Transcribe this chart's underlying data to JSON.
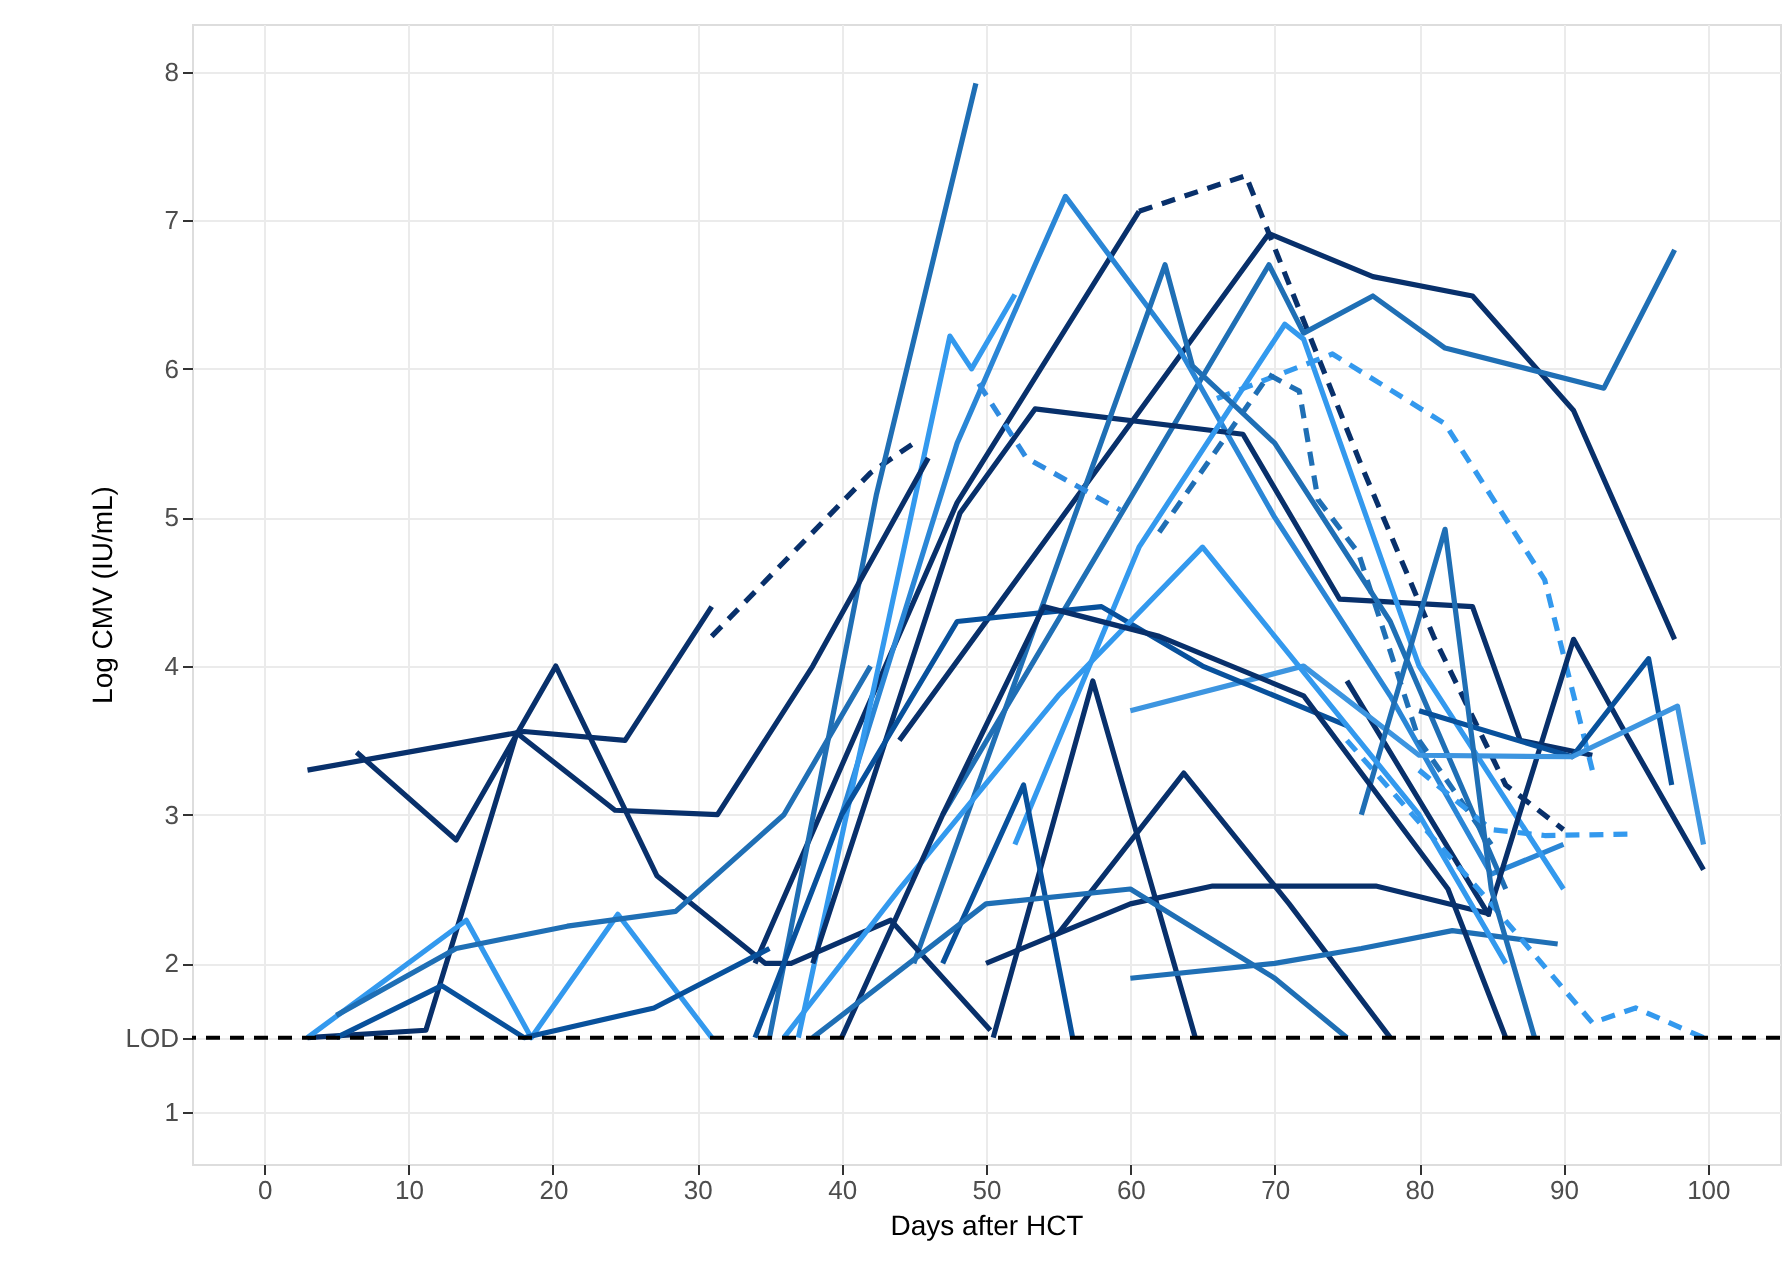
{
  "chart_data": {
    "type": "line",
    "xlabel": "Days after HCT",
    "ylabel": "Log CMV (IU/mL)",
    "xlim": [
      -5,
      105
    ],
    "ylim": [
      0.65,
      8.32
    ],
    "xticks": [
      0,
      10,
      20,
      30,
      40,
      50,
      60,
      70,
      80,
      90,
      100
    ],
    "yticks": [
      1,
      {
        "value": 1.5,
        "label": "LOD"
      },
      2,
      3,
      4,
      5,
      6,
      7,
      8
    ],
    "grid": true,
    "marker": "none",
    "line_style": "solid",
    "ref_lines": [
      {
        "axis": "y",
        "value": 1.5,
        "color": "#000000",
        "line_style": "dashed"
      }
    ],
    "series": [
      {
        "color": "#08306b",
        "x": [
          3,
          18,
          25,
          31
        ],
        "values": [
          3.3,
          3.56,
          3.5,
          4.4
        ]
      },
      {
        "color": "#08306b",
        "line_style": "dashed",
        "x": [
          31,
          42,
          45
        ],
        "values": [
          4.2,
          5.3,
          5.5
        ]
      },
      {
        "color": "#08306b",
        "x": [
          34,
          48,
          60.6
        ],
        "values": [
          2.0,
          5.1,
          7.06
        ]
      },
      {
        "color": "#08306b",
        "line_style": "dashed",
        "x": [
          60.6,
          68,
          76,
          81,
          86,
          90
        ],
        "values": [
          7.06,
          7.3,
          5.35,
          4.2,
          3.2,
          2.9
        ]
      },
      {
        "color": "#08306b",
        "x": [
          44,
          69.6,
          76.8,
          83.7,
          90.7,
          97.7
        ],
        "values": [
          3.5,
          6.91,
          6.62,
          6.49,
          5.72,
          4.18
        ]
      },
      {
        "color": "#1f6fb5",
        "x": [
          47,
          69.6,
          72,
          76.8,
          81.8,
          92.8,
          97.7
        ],
        "values": [
          3.0,
          6.7,
          6.24,
          6.49,
          6.14,
          5.87,
          6.8
        ]
      },
      {
        "color": "#2a86d6",
        "x": [
          40,
          48,
          53.4,
          55.5,
          63.4,
          70,
          78,
          85,
          90
        ],
        "values": [
          3.0,
          5.5,
          6.7,
          7.16,
          6.13,
          5.0,
          3.8,
          2.6,
          2.8
        ]
      },
      {
        "color": "#1f6fb5",
        "x": [
          35,
          42.4,
          49.3
        ],
        "values": [
          1.5,
          5.15,
          7.92
        ]
      },
      {
        "color": "#3399ee",
        "x": [
          37,
          47.5,
          49,
          52
        ],
        "values": [
          1.5,
          6.22,
          6.0,
          6.5
        ]
      },
      {
        "color": "#08306b",
        "x": [
          38,
          48.2,
          53.4,
          67.8,
          74.5,
          83.7,
          87,
          92
        ],
        "values": [
          2.0,
          5.03,
          5.73,
          5.56,
          4.45,
          4.4,
          3.5,
          3.4
        ]
      },
      {
        "color": "#3399ee",
        "line_style": "dashed",
        "x": [
          66,
          74,
          81.8,
          88.7,
          92
        ],
        "values": [
          5.8,
          6.1,
          5.63,
          4.58,
          3.3
        ]
      },
      {
        "color": "#3399ee",
        "x": [
          52,
          60.6,
          70.7,
          72,
          80,
          90
        ],
        "values": [
          2.8,
          4.8,
          6.3,
          6.2,
          4.0,
          2.5
        ]
      },
      {
        "color": "#1f6fb5",
        "x": [
          45,
          62.4,
          64.3,
          70,
          78,
          86
        ],
        "values": [
          2.0,
          6.7,
          6.02,
          5.5,
          4.3,
          2.5
        ]
      },
      {
        "color": "#2f8be0",
        "line_style": "dashed",
        "x": [
          49.5,
          52.8,
          59.3
        ],
        "values": [
          5.9,
          5.4,
          5.05
        ]
      },
      {
        "color": "#1f6fb5",
        "line_style": "dashed",
        "x": [
          62,
          69.6,
          71.7,
          73,
          75.8,
          80,
          85
        ],
        "values": [
          4.9,
          5.96,
          5.85,
          5.12,
          4.76,
          3.5,
          2.8
        ]
      },
      {
        "color": "#08306b",
        "x": [
          6.4,
          13.3,
          20.2,
          27.2,
          34.7,
          36.5,
          43.4,
          50.3
        ],
        "values": [
          3.42,
          2.83,
          4.0,
          2.59,
          2.0,
          2.0,
          2.29,
          1.55
        ]
      },
      {
        "color": "#08306b",
        "x": [
          3,
          11.2,
          17.5,
          24.3,
          31.4,
          38,
          46
        ],
        "values": [
          1.5,
          1.55,
          3.55,
          3.03,
          3.0,
          4.0,
          5.4
        ]
      },
      {
        "color": "#3399ee",
        "x": [
          3,
          14,
          18.5,
          24.5,
          31
        ],
        "values": [
          1.5,
          2.29,
          1.5,
          2.33,
          1.5
        ]
      },
      {
        "color": "#1f6fb5",
        "x": [
          5,
          13.3,
          21,
          28.5,
          36,
          42
        ],
        "values": [
          1.65,
          2.1,
          2.25,
          2.35,
          3.0,
          4.0
        ]
      },
      {
        "color": "#08519c",
        "x": [
          5,
          12.3,
          18,
          27,
          35
        ],
        "values": [
          1.5,
          1.85,
          1.5,
          1.7,
          2.1
        ]
      },
      {
        "color": "#08306b",
        "x": [
          75,
          84.8,
          90.7,
          94,
          99.7
        ],
        "values": [
          3.9,
          2.33,
          4.18,
          3.6,
          2.63
        ]
      },
      {
        "color": "#08519c",
        "x": [
          80,
          90.6,
          95.9,
          97.5
        ],
        "values": [
          3.7,
          3.39,
          4.05,
          3.2
        ]
      },
      {
        "color": "#3d95e0",
        "x": [
          60,
          72,
          80,
          90.6,
          97.9,
          99.7
        ],
        "values": [
          3.7,
          4.0,
          3.4,
          3.39,
          3.73,
          2.8
        ]
      },
      {
        "color": "#08306b",
        "x": [
          50.5,
          57.4,
          64.5
        ],
        "values": [
          1.5,
          3.9,
          1.5
        ]
      },
      {
        "color": "#08519c",
        "x": [
          47,
          52.6,
          56
        ],
        "values": [
          2.0,
          3.2,
          1.5
        ]
      },
      {
        "color": "#08306b",
        "x": [
          55,
          63.7,
          71,
          78
        ],
        "values": [
          2.2,
          3.28,
          2.4,
          1.5
        ]
      },
      {
        "color": "#08306b",
        "x": [
          50,
          60,
          65.7,
          77,
          85
        ],
        "values": [
          2.0,
          2.4,
          2.52,
          2.52,
          2.33
        ]
      },
      {
        "color": "#1f6fb5",
        "x": [
          60,
          70,
          76,
          82.3,
          89.6
        ],
        "values": [
          1.9,
          2.0,
          2.1,
          2.22,
          2.13
        ]
      },
      {
        "color": "#3399ee",
        "line_style": "dashed",
        "x": [
          75,
          85,
          92,
          95,
          99.7
        ],
        "values": [
          3.5,
          2.4,
          1.6,
          1.7,
          1.5
        ]
      },
      {
        "color": "#3399ee",
        "line_style": "dashed",
        "x": [
          80,
          85,
          88.7,
          94.9
        ],
        "values": [
          3.3,
          2.9,
          2.86,
          2.87
        ]
      },
      {
        "color": "#1f6fb5",
        "x": [
          76,
          81.8,
          85,
          88
        ],
        "values": [
          3.0,
          4.92,
          2.5,
          1.5
        ]
      },
      {
        "color": "#08519c",
        "x": [
          34,
          40,
          48,
          58,
          65,
          75
        ],
        "values": [
          1.5,
          3.0,
          4.3,
          4.4,
          4.0,
          3.6
        ]
      },
      {
        "color": "#3399ee",
        "x": [
          36,
          44,
          55,
          65,
          70,
          80,
          86
        ],
        "values": [
          1.5,
          2.5,
          3.8,
          4.8,
          4.2,
          3.0,
          2.0
        ]
      },
      {
        "color": "#08306b",
        "x": [
          40,
          47,
          54,
          62,
          72,
          82,
          86
        ],
        "values": [
          1.5,
          3.0,
          4.4,
          4.2,
          3.8,
          2.5,
          1.5
        ]
      },
      {
        "color": "#1f6fb5",
        "x": [
          38,
          50,
          60,
          70,
          75
        ],
        "values": [
          1.5,
          2.4,
          2.5,
          1.9,
          1.5
        ]
      }
    ]
  }
}
